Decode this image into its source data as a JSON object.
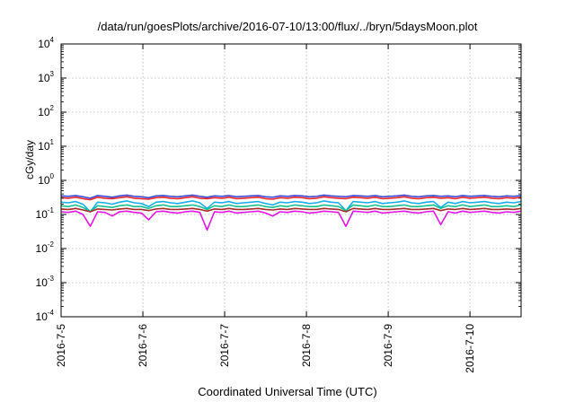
{
  "chart_data": {
    "type": "line",
    "title": "/data/run/goesPlots/archive/2016-07-10/13:00/flux/../bryn/5daysMoon.plot",
    "xlabel": "Coordinated Universal Time (UTC)",
    "ylabel": "cGy/day",
    "yscale": "log",
    "ylim": [
      0.0001,
      10000
    ],
    "y_ticks": [
      "10-4",
      "10-3",
      "10-2",
      "10-1",
      "100",
      "101",
      "102",
      "103",
      "104"
    ],
    "xlim": [
      "2016-07-05",
      "2016-07-10 15:00"
    ],
    "x_ticks": [
      "2016-7-5",
      "2016-7-6",
      "2016-7-7",
      "2016-7-8",
      "2016-7-9",
      "2016-7-10"
    ],
    "grid": true,
    "series": [
      {
        "color": "#3b4bd6",
        "values": [
          0.35,
          0.34,
          0.36,
          0.33,
          0.3,
          0.36,
          0.34,
          0.32,
          0.35,
          0.37,
          0.34,
          0.33,
          0.31,
          0.35,
          0.36,
          0.34,
          0.33,
          0.35,
          0.37,
          0.34,
          0.32,
          0.35,
          0.34,
          0.36,
          0.33,
          0.34,
          0.35,
          0.36,
          0.33,
          0.32,
          0.35,
          0.34,
          0.36,
          0.35,
          0.33,
          0.34,
          0.37,
          0.35,
          0.34,
          0.33,
          0.36,
          0.35,
          0.34,
          0.36,
          0.33,
          0.34,
          0.35,
          0.37,
          0.34,
          0.33,
          0.35,
          0.36,
          0.34,
          0.35,
          0.33,
          0.36,
          0.34,
          0.35,
          0.36,
          0.34,
          0.33,
          0.35,
          0.34,
          0.36
        ]
      },
      {
        "color": "#e8262b",
        "values": [
          0.31,
          0.3,
          0.32,
          0.29,
          0.27,
          0.32,
          0.3,
          0.29,
          0.31,
          0.33,
          0.3,
          0.29,
          0.28,
          0.31,
          0.32,
          0.3,
          0.29,
          0.31,
          0.33,
          0.3,
          0.29,
          0.31,
          0.3,
          0.32,
          0.29,
          0.3,
          0.31,
          0.32,
          0.29,
          0.28,
          0.31,
          0.3,
          0.32,
          0.31,
          0.29,
          0.3,
          0.33,
          0.31,
          0.3,
          0.29,
          0.32,
          0.31,
          0.3,
          0.32,
          0.29,
          0.3,
          0.31,
          0.33,
          0.3,
          0.29,
          0.31,
          0.32,
          0.3,
          0.31,
          0.29,
          0.32,
          0.3,
          0.31,
          0.32,
          0.3,
          0.29,
          0.31,
          0.3,
          0.32
        ]
      },
      {
        "color": "#18aee6",
        "values": [
          0.23,
          0.22,
          0.24,
          0.2,
          0.12,
          0.23,
          0.22,
          0.2,
          0.23,
          0.25,
          0.22,
          0.21,
          0.17,
          0.23,
          0.24,
          0.22,
          0.21,
          0.23,
          0.25,
          0.22,
          0.15,
          0.23,
          0.22,
          0.24,
          0.21,
          0.22,
          0.23,
          0.24,
          0.21,
          0.19,
          0.23,
          0.22,
          0.24,
          0.23,
          0.21,
          0.22,
          0.25,
          0.23,
          0.22,
          0.13,
          0.24,
          0.23,
          0.22,
          0.24,
          0.21,
          0.22,
          0.23,
          0.25,
          0.22,
          0.21,
          0.23,
          0.24,
          0.16,
          0.23,
          0.21,
          0.24,
          0.22,
          0.23,
          0.24,
          0.22,
          0.21,
          0.23,
          0.22,
          0.24
        ]
      },
      {
        "color": "#17c08f",
        "values": [
          0.18,
          0.17,
          0.19,
          0.16,
          0.12,
          0.18,
          0.17,
          0.16,
          0.18,
          0.19,
          0.17,
          0.17,
          0.15,
          0.18,
          0.19,
          0.17,
          0.17,
          0.18,
          0.19,
          0.17,
          0.14,
          0.18,
          0.17,
          0.19,
          0.17,
          0.17,
          0.18,
          0.19,
          0.17,
          0.16,
          0.18,
          0.17,
          0.19,
          0.18,
          0.17,
          0.17,
          0.19,
          0.18,
          0.17,
          0.13,
          0.19,
          0.18,
          0.17,
          0.19,
          0.17,
          0.17,
          0.18,
          0.19,
          0.17,
          0.17,
          0.18,
          0.19,
          0.15,
          0.18,
          0.17,
          0.19,
          0.17,
          0.18,
          0.19,
          0.17,
          0.17,
          0.18,
          0.17,
          0.19
        ]
      },
      {
        "color": "#a52a2a",
        "values": [
          0.145,
          0.14,
          0.15,
          0.135,
          0.12,
          0.145,
          0.14,
          0.135,
          0.145,
          0.15,
          0.14,
          0.14,
          0.13,
          0.145,
          0.15,
          0.14,
          0.14,
          0.145,
          0.15,
          0.14,
          0.125,
          0.145,
          0.14,
          0.15,
          0.14,
          0.14,
          0.145,
          0.15,
          0.14,
          0.135,
          0.145,
          0.14,
          0.15,
          0.145,
          0.14,
          0.14,
          0.15,
          0.145,
          0.14,
          0.12,
          0.15,
          0.145,
          0.14,
          0.15,
          0.14,
          0.14,
          0.145,
          0.15,
          0.14,
          0.14,
          0.145,
          0.15,
          0.13,
          0.145,
          0.14,
          0.15,
          0.14,
          0.145,
          0.15,
          0.14,
          0.14,
          0.145,
          0.14,
          0.15
        ]
      },
      {
        "color": "#e414e4",
        "values": [
          0.12,
          0.115,
          0.125,
          0.1,
          0.045,
          0.12,
          0.115,
          0.09,
          0.12,
          0.125,
          0.115,
          0.11,
          0.07,
          0.12,
          0.125,
          0.115,
          0.11,
          0.12,
          0.125,
          0.115,
          0.035,
          0.12,
          0.115,
          0.125,
          0.11,
          0.115,
          0.12,
          0.125,
          0.11,
          0.09,
          0.12,
          0.115,
          0.125,
          0.12,
          0.11,
          0.115,
          0.125,
          0.12,
          0.115,
          0.045,
          0.125,
          0.12,
          0.115,
          0.125,
          0.11,
          0.115,
          0.12,
          0.125,
          0.115,
          0.11,
          0.12,
          0.125,
          0.05,
          0.12,
          0.11,
          0.125,
          0.115,
          0.12,
          0.125,
          0.115,
          0.11,
          0.12,
          0.115,
          0.125
        ]
      }
    ]
  }
}
